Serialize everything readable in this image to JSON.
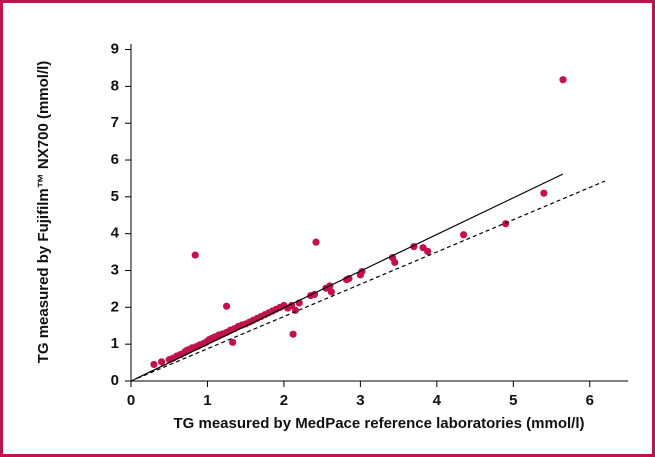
{
  "chart_data": {
    "type": "scatter",
    "x_label": "TG measured by MedPace reference laboratories (mmol/l)",
    "y_label": "TG measured by Fujifilm™ NX700 (mmol/l)",
    "xlim": [
      0,
      6.5
    ],
    "ylim": [
      0,
      9.15
    ],
    "xticks": [
      0,
      1,
      2,
      3,
      4,
      5,
      6
    ],
    "yticks": [
      0,
      1,
      2,
      3,
      4,
      5,
      6,
      7,
      8,
      9
    ],
    "series": [
      {
        "type": "scatter",
        "color": "#c2124b",
        "x": [
          0.3,
          0.4,
          0.5,
          0.55,
          0.6,
          0.65,
          0.7,
          0.72,
          0.75,
          0.8,
          0.85,
          0.88,
          0.9,
          0.95,
          0.98,
          1.0,
          1.02,
          1.05,
          1.08,
          1.1,
          1.15,
          1.2,
          1.25,
          1.3,
          1.35,
          1.4,
          1.45,
          1.5,
          1.55,
          1.6,
          1.65,
          1.7,
          1.75,
          1.8,
          1.85,
          1.9,
          1.95,
          2.0,
          0.84,
          1.25,
          1.33,
          2.12,
          2.42,
          5.65,
          5.4,
          4.9,
          4.35,
          3.7,
          3.82,
          3.88,
          3.42,
          3.45,
          3.02,
          3.0,
          2.85,
          2.82,
          2.6,
          2.55,
          2.62,
          2.35,
          2.4,
          2.2,
          2.1,
          2.05,
          2.15
        ],
        "values": [
          0.45,
          0.52,
          0.58,
          0.62,
          0.68,
          0.72,
          0.78,
          0.82,
          0.85,
          0.9,
          0.93,
          0.95,
          0.98,
          1.02,
          1.05,
          1.08,
          1.12,
          1.15,
          1.18,
          1.2,
          1.25,
          1.28,
          1.32,
          1.38,
          1.42,
          1.48,
          1.52,
          1.55,
          1.6,
          1.65,
          1.7,
          1.75,
          1.8,
          1.85,
          1.9,
          1.95,
          2.0,
          2.05,
          3.42,
          2.03,
          1.05,
          1.27,
          3.77,
          8.18,
          5.1,
          4.27,
          3.97,
          3.65,
          3.62,
          3.52,
          3.35,
          3.22,
          2.97,
          2.88,
          2.78,
          2.75,
          2.58,
          2.52,
          2.42,
          2.32,
          2.35,
          2.12,
          2.05,
          1.98,
          1.92
        ]
      },
      {
        "type": "line",
        "color": "#000000",
        "dash": false,
        "x": [
          0.05,
          5.65
        ],
        "values": [
          0.05,
          5.62
        ]
      },
      {
        "type": "line",
        "color": "#000000",
        "dash": true,
        "x": [
          0,
          6.2
        ],
        "values": [
          0,
          5.43
        ]
      }
    ]
  }
}
